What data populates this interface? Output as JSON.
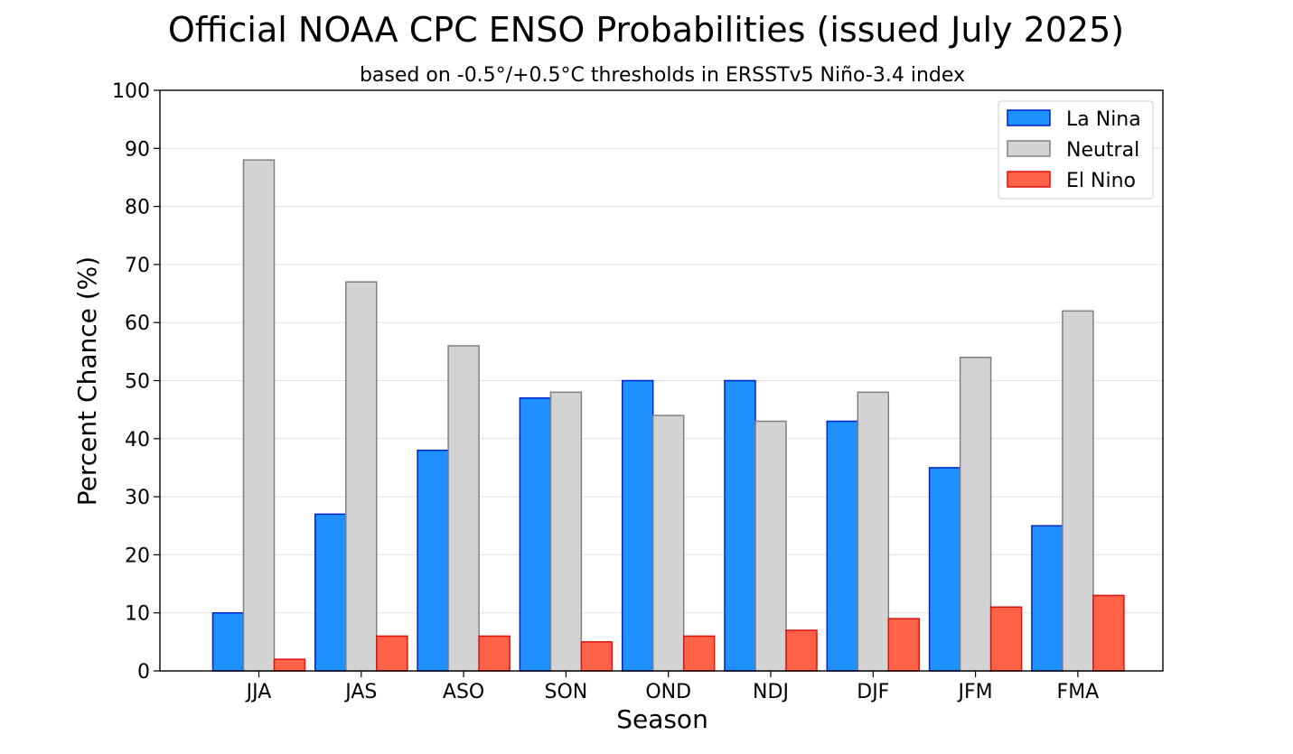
{
  "chart_data": {
    "type": "bar",
    "title": "Official NOAA CPC ENSO Probabilities (issued July 2025)",
    "subtitle": "based on -0.5°/+0.5°C thresholds in ERSSTv5 Niño-3.4 index",
    "xlabel": "Season",
    "ylabel": "Percent Chance (%)",
    "ylim": [
      0,
      100
    ],
    "yticks": [
      0,
      10,
      20,
      30,
      40,
      50,
      60,
      70,
      80,
      90,
      100
    ],
    "grid": "horizontal",
    "legend_position": "top-right",
    "categories": [
      "JJA",
      "JAS",
      "ASO",
      "SON",
      "OND",
      "NDJ",
      "DJF",
      "JFM",
      "FMA"
    ],
    "series": [
      {
        "name": "La Nina",
        "color": "#1e90ff",
        "edge_color": "#0022cc",
        "values": [
          10,
          27,
          38,
          47,
          50,
          50,
          43,
          35,
          25
        ]
      },
      {
        "name": "Neutral",
        "color": "#d3d3d3",
        "edge_color": "#808080",
        "values": [
          88,
          67,
          56,
          48,
          44,
          43,
          48,
          54,
          62
        ]
      },
      {
        "name": "El Nino",
        "color": "#ff6347",
        "edge_color": "#dd1111",
        "values": [
          2,
          6,
          6,
          5,
          6,
          7,
          9,
          11,
          13
        ]
      }
    ]
  }
}
